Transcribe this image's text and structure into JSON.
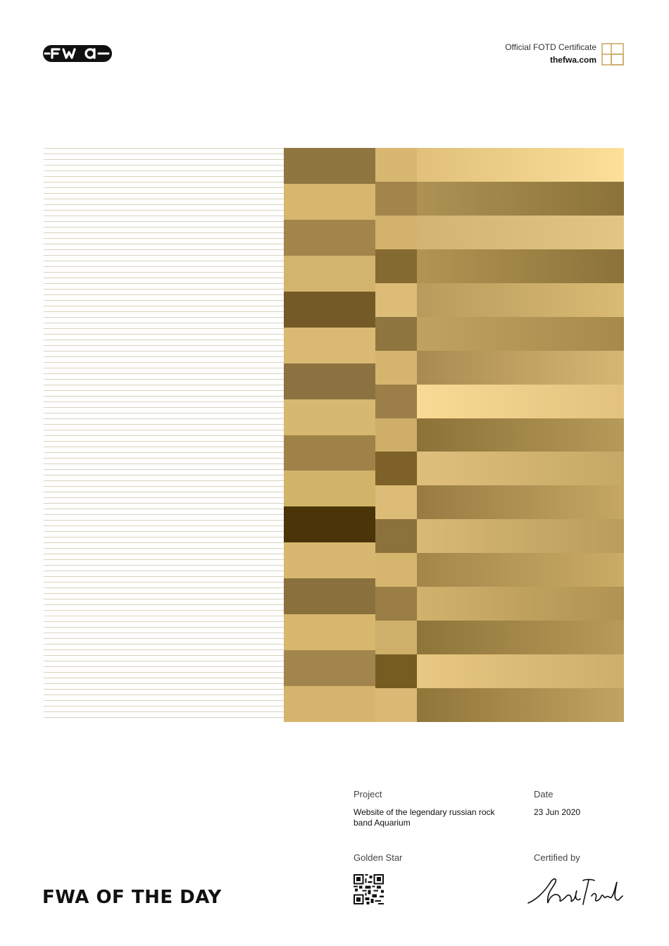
{
  "header": {
    "logo": "fwa-logo",
    "certificate_title": "Official FOTD Certificate",
    "site": "thefwa.com",
    "certificate_icon": "grid-square-icon"
  },
  "artwork": {
    "col1_colors": [
      "#8f7640",
      "#d7b76e",
      "#a3844a",
      "#d3b46c",
      "#745a26",
      "#dab973",
      "#8b7240",
      "#d7b870",
      "#9f8248",
      "#d1b36a",
      "#4b3407",
      "#d8b871",
      "#8a703d",
      "#d8b86f",
      "#a1854d",
      "#d5b56d"
    ],
    "col2_colors": [
      "#d8b770",
      "#a3844b",
      "#d3b36b",
      "#856a32",
      "#dcbc77",
      "#8f7640",
      "#d5b56d",
      "#9c7f48",
      "#cfae68",
      "#7d6128",
      "#dcbc76",
      "#8b713c",
      "#d6b56f",
      "#9b7e46",
      "#cfb06b",
      "#775c22",
      "#dab975"
    ],
    "col3_gradients": [
      [
        "#e0c07a",
        "#fddf99"
      ],
      [
        "#ad9254",
        "#8b7238"
      ],
      [
        "#d3b473",
        "#e3c683"
      ],
      [
        "#b29553",
        "#8b7239"
      ],
      [
        "#b99c5d",
        "#d9bb74"
      ],
      [
        "#c1a361",
        "#a68a4c"
      ],
      [
        "#a88b50",
        "#d8b774"
      ],
      [
        "#f9db95",
        "#e2c27e"
      ],
      [
        "#8c7238",
        "#b69a59"
      ],
      [
        "#dfbf7c",
        "#c6a966"
      ],
      [
        "#977b41",
        "#c6a864"
      ],
      [
        "#d9ba76",
        "#b99d5b"
      ],
      [
        "#a3874a",
        "#cbac66"
      ],
      [
        "#d1b26d",
        "#b09352"
      ],
      [
        "#8d7439",
        "#b89b58"
      ],
      [
        "#e8c882",
        "#cdae6b"
      ],
      [
        "#907539",
        "#c2a462"
      ]
    ]
  },
  "details": {
    "project_label": "Project",
    "project_value_line1": "Website of the legendary russian rock",
    "project_value_line2": "band Aquarium",
    "date_label": "Date",
    "date_value": "23 Jun 2020",
    "award_label": "Golden Star",
    "certified_label": "Certified by",
    "qr_icon": "qr-code-icon",
    "signature": "signature-image"
  },
  "footer": {
    "title": "FWA OF THE DAY"
  }
}
